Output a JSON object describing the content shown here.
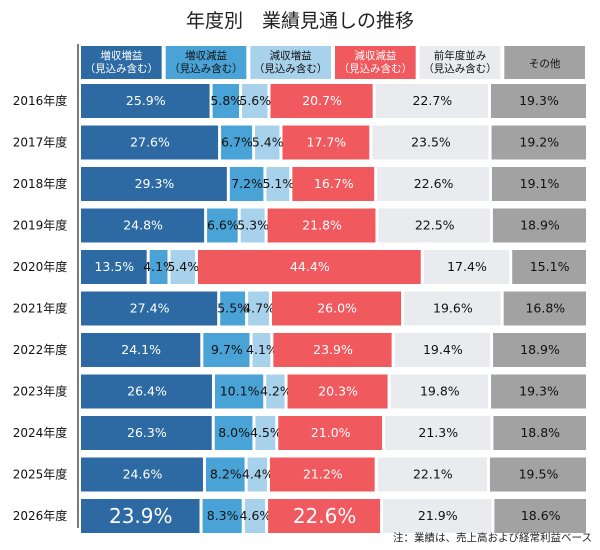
{
  "chart_data": {
    "type": "bar",
    "orientation": "horizontal",
    "stacked": "100%",
    "title": "年度別　業績見通しの推移",
    "note": "注：業績は、売上高および経常利益ベース",
    "categories": [
      "2016年度",
      "2017年度",
      "2018年度",
      "2019年度",
      "2020年度",
      "2021年度",
      "2022年度",
      "2023年度",
      "2024年度",
      "2025年度",
      "2026年度"
    ],
    "legend_position": "top",
    "series": [
      {
        "name": "増収増益\n（見込み含む）",
        "color": "#2d6aa3",
        "text_color": "#ffffff",
        "values": [
          25.9,
          27.6,
          29.3,
          24.8,
          13.5,
          27.4,
          24.1,
          26.4,
          26.3,
          24.6,
          23.9
        ]
      },
      {
        "name": "増収減益\n（見込み含む）",
        "color": "#4aa3d6",
        "text_color": "#111111",
        "values": [
          5.8,
          6.7,
          7.2,
          6.6,
          4.1,
          5.5,
          9.7,
          10.1,
          8.0,
          8.2,
          8.3
        ]
      },
      {
        "name": "減収増益\n（見込み含む）",
        "color": "#a8d2ec",
        "text_color": "#111111",
        "values": [
          5.6,
          5.4,
          5.1,
          5.3,
          5.4,
          4.7,
          4.1,
          4.2,
          4.5,
          4.4,
          4.6
        ]
      },
      {
        "name": "減収減益\n（見込み含む）",
        "color": "#f0595e",
        "text_color": "#ffffff",
        "values": [
          20.7,
          17.7,
          16.7,
          21.8,
          44.4,
          26.0,
          23.9,
          20.3,
          21.0,
          21.2,
          22.6
        ]
      },
      {
        "name": "前年度並み\n（見込み含む）",
        "color": "#e9ebef",
        "text_color": "#111111",
        "values": [
          22.7,
          23.5,
          22.6,
          22.5,
          17.4,
          19.6,
          19.4,
          19.8,
          21.3,
          22.1,
          21.9
        ]
      },
      {
        "name": "その他",
        "color": "#a2a2a2",
        "text_color": "#111111",
        "values": [
          19.3,
          19.2,
          19.1,
          18.9,
          15.1,
          16.8,
          18.9,
          19.3,
          18.8,
          19.5,
          18.6
        ]
      }
    ],
    "unit": "%",
    "xlim": [
      0,
      100
    ],
    "grid": false
  }
}
